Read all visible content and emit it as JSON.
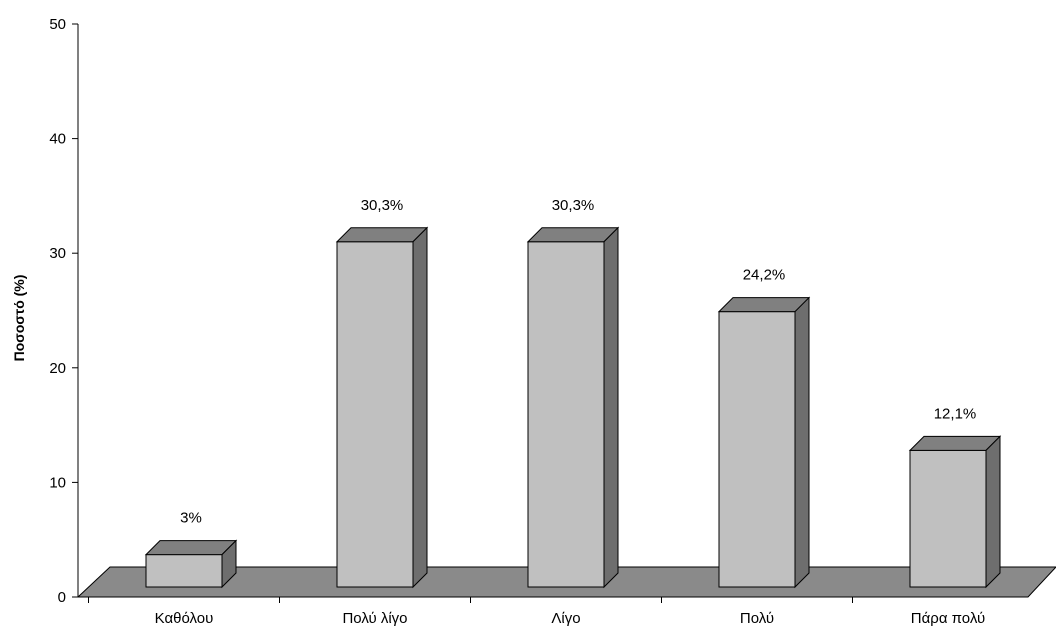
{
  "chart_data": {
    "type": "bar",
    "style": "3d-column",
    "title": "",
    "xlabel": "",
    "ylabel": "Ποσοστό (%)",
    "ylim": [
      0,
      50
    ],
    "yticks": [
      0,
      10,
      20,
      30,
      40,
      50
    ],
    "grid": false,
    "categories": [
      "Καθόλου",
      "Πολύ λίγο",
      "Λίγο",
      "Πολύ",
      "Πάρα πολύ"
    ],
    "values": [
      3,
      30.3,
      30.3,
      24.2,
      12.1
    ],
    "data_labels": [
      "3%",
      "30,3%",
      "30,3%",
      "24,2%",
      "12,1%"
    ],
    "colors": {
      "bar_front": "#c0c0c0",
      "bar_top": "#808080",
      "bar_side": "#6e6e6e",
      "floor": "#8a8a8a",
      "outline": "#000000"
    }
  }
}
